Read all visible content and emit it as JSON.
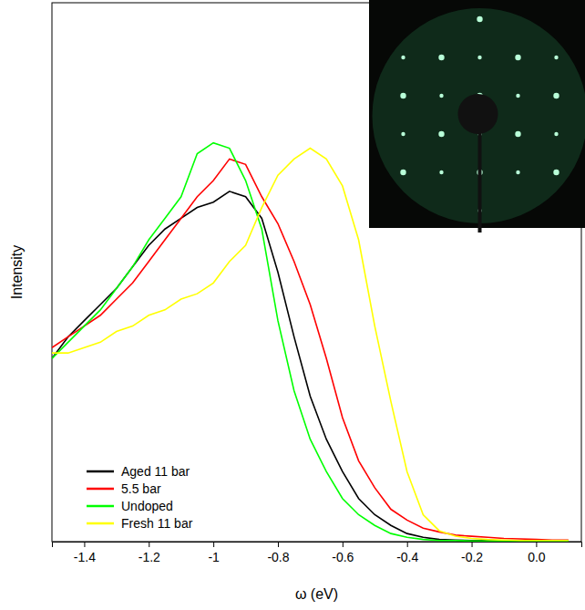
{
  "chart_data": {
    "type": "line",
    "x_label": "ω (eV)",
    "y_label": "Intensity",
    "x": [
      -1.5,
      -1.45,
      -1.4,
      -1.35,
      -1.3,
      -1.25,
      -1.2,
      -1.15,
      -1.1,
      -1.05,
      -1.0,
      -0.95,
      -0.9,
      -0.85,
      -0.8,
      -0.75,
      -0.7,
      -0.65,
      -0.6,
      -0.55,
      -0.5,
      -0.45,
      -0.4,
      -0.35,
      -0.3,
      -0.25,
      -0.2,
      -0.15,
      -0.1,
      -0.05,
      0.0,
      0.05,
      0.1
    ],
    "series": [
      {
        "name": "Aged 11 bar",
        "color": "#000000",
        "values": [
          0.34,
          0.38,
          0.41,
          0.44,
          0.47,
          0.51,
          0.55,
          0.58,
          0.6,
          0.62,
          0.63,
          0.65,
          0.64,
          0.6,
          0.5,
          0.38,
          0.27,
          0.19,
          0.13,
          0.08,
          0.05,
          0.03,
          0.015,
          0.008,
          0.004,
          0.003,
          0.002,
          0.002,
          0.001,
          0.001,
          0.001,
          0.001,
          0.001
        ]
      },
      {
        "name": "5.5 bar",
        "color": "#ff0000",
        "values": [
          0.36,
          0.38,
          0.4,
          0.42,
          0.45,
          0.48,
          0.52,
          0.56,
          0.6,
          0.64,
          0.67,
          0.71,
          0.7,
          0.64,
          0.59,
          0.52,
          0.44,
          0.34,
          0.23,
          0.15,
          0.1,
          0.06,
          0.04,
          0.025,
          0.018,
          0.012,
          0.01,
          0.008,
          0.006,
          0.005,
          0.004,
          0.003,
          0.003
        ]
      },
      {
        "name": "Undoped",
        "color": "#00ff00",
        "values": [
          0.34,
          0.37,
          0.4,
          0.43,
          0.47,
          0.51,
          0.56,
          0.6,
          0.64,
          0.72,
          0.74,
          0.73,
          0.67,
          0.58,
          0.41,
          0.28,
          0.19,
          0.13,
          0.08,
          0.05,
          0.03,
          0.015,
          0.008,
          0.004,
          0.002,
          0.002,
          0.001,
          0.001,
          0.001,
          0.001,
          0.001,
          0.001,
          0.001
        ]
      },
      {
        "name": "Fresh 11 bar",
        "color": "#ffff00",
        "values": [
          0.35,
          0.35,
          0.36,
          0.37,
          0.39,
          0.4,
          0.42,
          0.43,
          0.45,
          0.46,
          0.48,
          0.52,
          0.55,
          0.62,
          0.68,
          0.71,
          0.73,
          0.71,
          0.66,
          0.56,
          0.4,
          0.26,
          0.13,
          0.05,
          0.02,
          0.01,
          0.006,
          0.004,
          0.003,
          0.002,
          0.002,
          0.002,
          0.002
        ]
      }
    ],
    "xlim": [
      -1.5,
      0.14
    ],
    "ylim": [
      0,
      1
    ],
    "xticks": [
      -1.4,
      -1.2,
      -1.0,
      -0.8,
      -0.6,
      -0.4,
      -0.2,
      {
        "value": 0,
        "label": "0.0"
      }
    ],
    "tick_labels": "x",
    "grid": false,
    "legend": "lower left"
  }
}
